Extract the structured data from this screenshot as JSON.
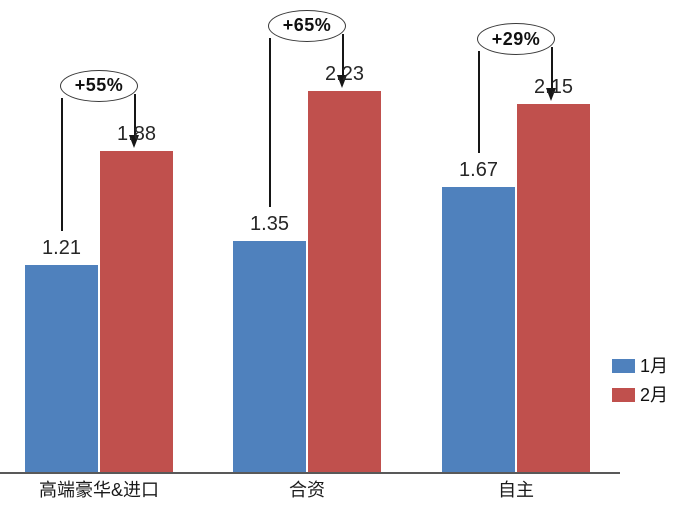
{
  "chart_data": {
    "type": "bar",
    "title": "",
    "categories": [
      "高端豪华&进口",
      "合资",
      "自主"
    ],
    "series": [
      {
        "name": "1月",
        "color": "#4f81bd",
        "values": [
          1.21,
          1.35,
          1.67
        ],
        "value_labels": [
          "1.21",
          "1.35",
          "1.67"
        ]
      },
      {
        "name": "2月",
        "color": "#c0504d",
        "values": [
          1.88,
          2.23,
          2.15
        ],
        "value_labels": [
          "1.88",
          "2.23",
          "2.15"
        ]
      }
    ],
    "annotations": [
      {
        "text": "+55%"
      },
      {
        "text": "+65%"
      },
      {
        "text": "+29%"
      }
    ],
    "ylim": [
      0,
      2.6
    ],
    "grid": false,
    "y_axis_visible": false,
    "axis_color": "#595959",
    "legend_position": "right"
  }
}
